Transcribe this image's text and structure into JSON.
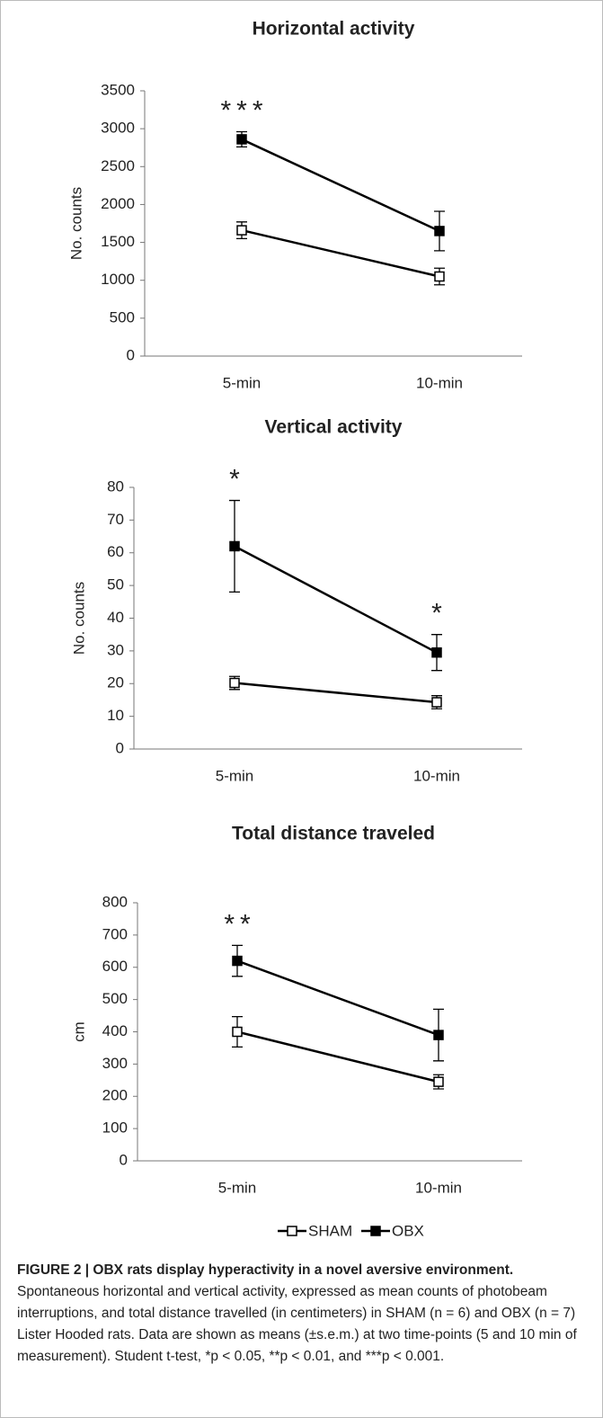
{
  "chart_data": [
    {
      "type": "line",
      "title": "Horizontal activity",
      "y_label": "No. counts",
      "categories": [
        "5-min",
        "10-min"
      ],
      "annotations": [
        "***",
        null
      ],
      "ylim": [
        0,
        3500
      ],
      "yticks": [
        0,
        500,
        1000,
        1500,
        2000,
        2500,
        3000,
        3500
      ],
      "series": [
        {
          "name": "SHAM",
          "color": "#000000",
          "marker_fill": "#ffffff",
          "values": [
            1660,
            1050
          ],
          "errors": [
            110,
            110
          ]
        },
        {
          "name": "OBX",
          "color": "#000000",
          "marker_fill": "#000000",
          "values": [
            2860,
            1650
          ],
          "errors": [
            100,
            260
          ]
        }
      ]
    },
    {
      "type": "line",
      "title": "Vertical activity",
      "y_label": "No. counts",
      "categories": [
        "5-min",
        "10-min"
      ],
      "annotations": [
        "*",
        "*"
      ],
      "ylim": [
        0,
        80
      ],
      "yticks": [
        0,
        10,
        20,
        30,
        40,
        50,
        60,
        70,
        80
      ],
      "series": [
        {
          "name": "SHAM",
          "color": "#000000",
          "marker_fill": "#ffffff",
          "values": [
            20.2,
            14.3
          ],
          "errors": [
            2,
            2
          ]
        },
        {
          "name": "OBX",
          "color": "#000000",
          "marker_fill": "#000000",
          "values": [
            62,
            29.5
          ],
          "errors": [
            14,
            5.5
          ]
        }
      ]
    },
    {
      "type": "line",
      "title": "Total distance traveled",
      "y_label": "cm",
      "categories": [
        "5-min",
        "10-min"
      ],
      "annotations": [
        "**",
        null
      ],
      "ylim": [
        0,
        800
      ],
      "yticks": [
        0,
        100,
        200,
        300,
        400,
        500,
        600,
        700,
        800
      ],
      "series": [
        {
          "name": "SHAM",
          "color": "#000000",
          "marker_fill": "#ffffff",
          "values": [
            400,
            245
          ],
          "errors": [
            47,
            22
          ]
        },
        {
          "name": "OBX",
          "color": "#000000",
          "marker_fill": "#000000",
          "values": [
            620,
            390
          ],
          "errors": [
            48,
            80
          ]
        }
      ]
    }
  ],
  "caption": {
    "title": "FIGURE 2 | OBX rats display hyperactivity in a novel aversive environment.",
    "body": "Spontaneous horizontal and vertical activity, expressed as mean counts of photobeam interruptions, and total distance travelled (in centimeters) in SHAM (n = 6) and OBX (n = 7) Lister Hooded rats. Data are shown as means (±s.e.m.) at two time-points (5 and 10 min of measurement). Student t-test, *p < 0.05, **p < 0.01, and ***p < 0.001."
  }
}
